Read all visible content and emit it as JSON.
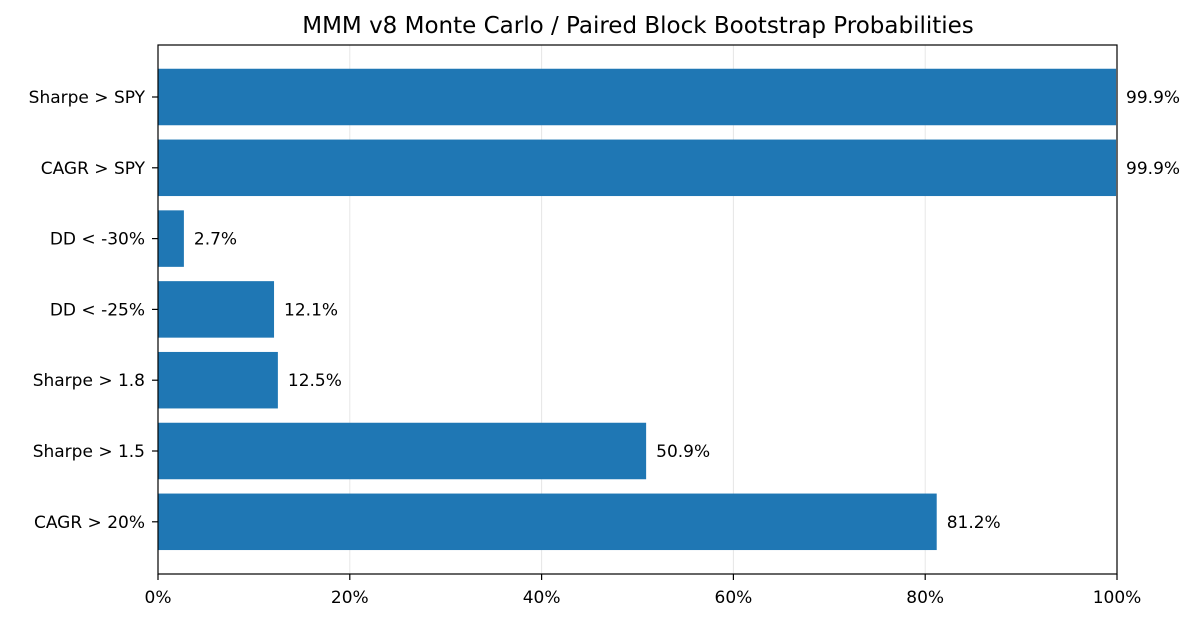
{
  "chart_data": {
    "type": "bar",
    "orientation": "horizontal",
    "title": "MMM v8 Monte Carlo / Paired Block Bootstrap Probabilities",
    "xlabel": "",
    "ylabel": "",
    "categories": [
      "Sharpe > SPY",
      "CAGR > SPY",
      "DD < -30%",
      "DD < -25%",
      "Sharpe > 1.8",
      "Sharpe > 1.5",
      "CAGR > 20%"
    ],
    "values": [
      99.9,
      99.9,
      2.7,
      12.1,
      12.5,
      50.9,
      81.2
    ],
    "value_labels": [
      "99.9%",
      "99.9%",
      "2.7%",
      "12.1%",
      "12.5%",
      "50.9%",
      "81.2%"
    ],
    "xlim": [
      0,
      100
    ],
    "xticks": [
      0,
      20,
      40,
      60,
      80,
      100
    ],
    "xtick_labels": [
      "0%",
      "20%",
      "40%",
      "60%",
      "80%",
      "100%"
    ],
    "grid": "vertical",
    "bar_color": "#1f77b4"
  }
}
